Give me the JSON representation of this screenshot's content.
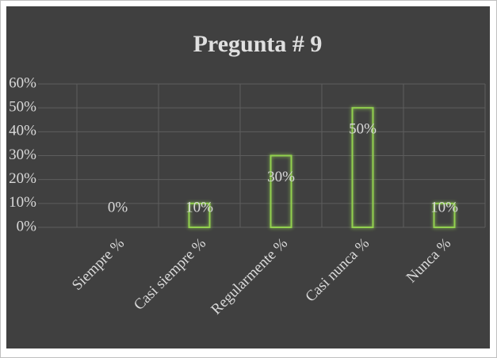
{
  "chart_data": {
    "type": "bar",
    "title": "Pregunta # 9",
    "categories": [
      "Siempre %",
      "Casi siempre %",
      "Regularmente %",
      "Casi nunca %",
      "Nunca %"
    ],
    "values": [
      0,
      10,
      30,
      50,
      10
    ],
    "value_labels": [
      "0%",
      "10%",
      "30%",
      "50%",
      "10%"
    ],
    "color": "#92d050",
    "ylim": [
      0,
      60
    ],
    "yticks": [
      {
        "value": 0,
        "label": "0%"
      },
      {
        "value": 10,
        "label": "10%"
      },
      {
        "value": 20,
        "label": "20%"
      },
      {
        "value": 30,
        "label": "30%"
      },
      {
        "value": 40,
        "label": "40%"
      },
      {
        "value": 50,
        "label": "50%"
      },
      {
        "value": 60,
        "label": "60%"
      }
    ],
    "grid": true
  }
}
